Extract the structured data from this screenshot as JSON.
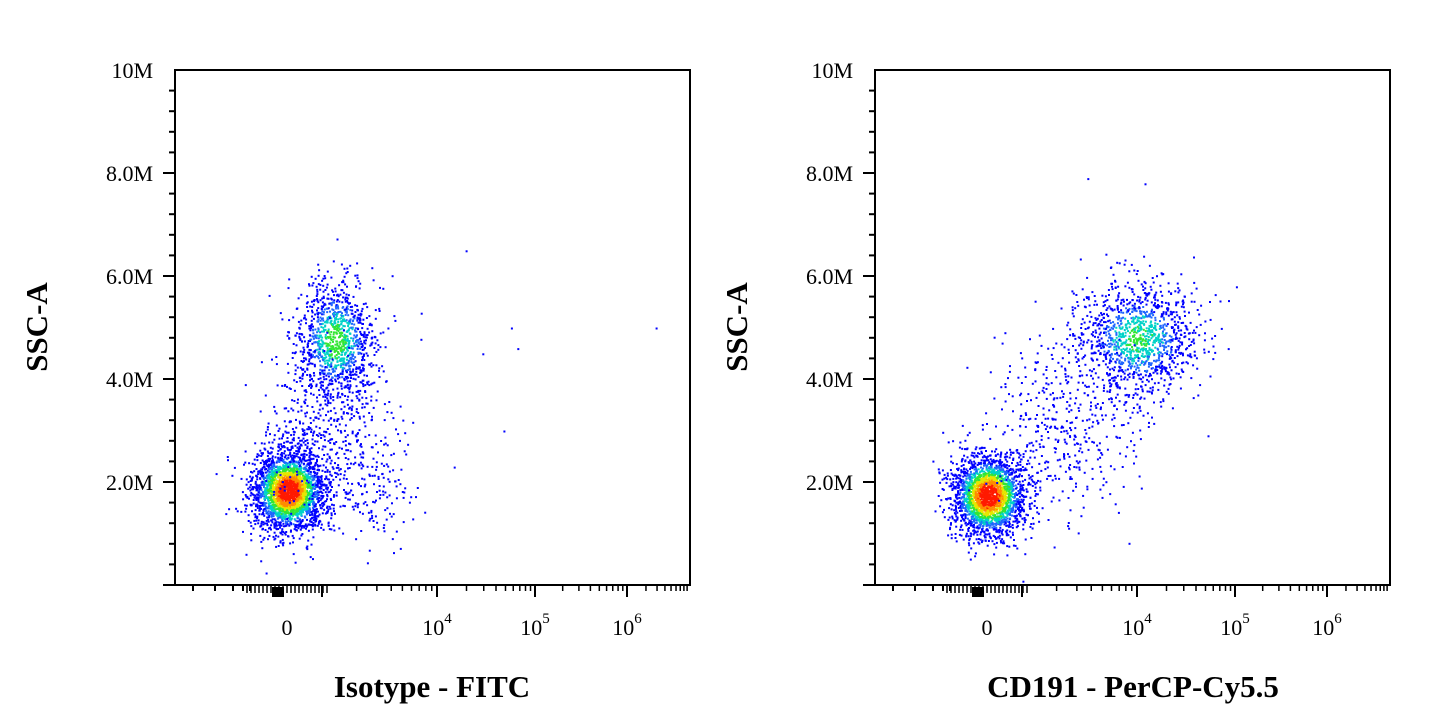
{
  "chart_data": [
    {
      "type": "scatter",
      "style": "density pseudocolor dot plot",
      "xlabel": "Isotype - FITC",
      "ylabel": "SSC-A",
      "x_scale": "biexponential",
      "x_ticks": [
        {
          "label": "0",
          "exp": ""
        },
        {
          "label": "10",
          "exp": "4"
        },
        {
          "label": "10",
          "exp": "5"
        },
        {
          "label": "10",
          "exp": "6"
        }
      ],
      "y_ticks": [
        "10M",
        "8.0M",
        "6.0M",
        "4.0M",
        "2.0M"
      ],
      "ylim": [
        0,
        10000000
      ],
      "grid": false,
      "density_colors": [
        "#0000ff",
        "#00c8ff",
        "#00ff66",
        "#ffee00",
        "#ff0000"
      ],
      "populations": [
        {
          "name": "",
          "x_center": "0",
          "y_center": 1700000,
          "relative_events": 0.68,
          "peak_density": "red"
        },
        {
          "name": "",
          "x_center": "~3000",
          "y_center": 4800000,
          "relative_events": 0.25,
          "peak_density": "green"
        }
      ],
      "scattered_outliers": [
        {
          "x": 20000,
          "y": 6500000
        },
        {
          "x": 30000,
          "y": 4500000
        },
        {
          "x": 60000,
          "y": 5000000
        },
        {
          "x": 70000,
          "y": 4600000
        },
        {
          "x": 2000000,
          "y": 5000000
        },
        {
          "x": 50000,
          "y": 3000000
        },
        {
          "x": 15000,
          "y": 2300000
        }
      ]
    },
    {
      "type": "scatter",
      "style": "density pseudocolor dot plot",
      "xlabel": "CD191 - PerCP-Cy5.5",
      "ylabel": "SSC-A",
      "x_scale": "biexponential",
      "x_ticks": [
        {
          "label": "0",
          "exp": ""
        },
        {
          "label": "10",
          "exp": "4"
        },
        {
          "label": "10",
          "exp": "5"
        },
        {
          "label": "10",
          "exp": "6"
        }
      ],
      "y_ticks": [
        "10M",
        "8.0M",
        "6.0M",
        "4.0M",
        "2.0M"
      ],
      "ylim": [
        0,
        10000000
      ],
      "grid": false,
      "density_colors": [
        "#0000ff",
        "#00c8ff",
        "#00ff66",
        "#ffee00",
        "#ff0000"
      ],
      "populations": [
        {
          "name": "",
          "x_center": "0",
          "y_center": 1700000,
          "relative_events": 0.62,
          "peak_density": "red"
        },
        {
          "name": "",
          "x_center": "~8000",
          "y_center": 4800000,
          "relative_events": 0.3,
          "peak_density": "cyan"
        }
      ],
      "scattered_outliers": [
        {
          "x": 110000,
          "y": 5800000
        },
        {
          "x": 90000,
          "y": 4600000
        },
        {
          "x": 45000,
          "y": 3900000
        },
        {
          "x": 12000,
          "y": 7800000
        },
        {
          "x": 3000,
          "y": 7900000
        }
      ]
    }
  ]
}
